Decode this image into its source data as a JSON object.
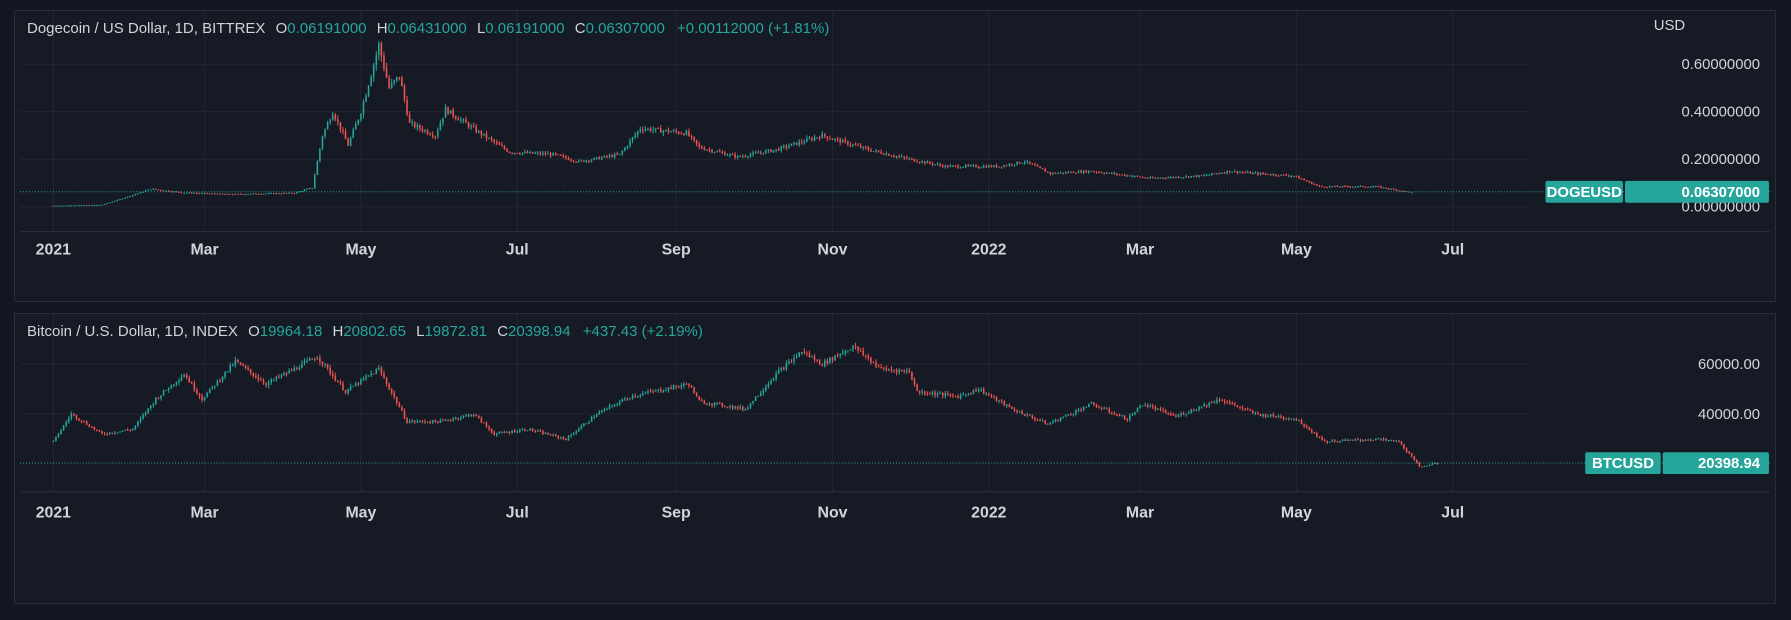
{
  "chart_data": [
    {
      "type": "candlestick",
      "title": "Dogecoin / US Dollar, 1D, BITTREX",
      "ohlc_labels": {
        "o": "O",
        "h": "H",
        "l": "L",
        "c": "C"
      },
      "ohlc": {
        "open": "0.06191000",
        "high": "0.06431000",
        "low": "0.06191000",
        "close": "0.06307000",
        "change": "+0.00112000 (+1.81%)"
      },
      "currency": "USD",
      "symbol": "DOGEUSD",
      "last_price": 0.06307,
      "last_price_label": "0.06307000",
      "ylim": [
        -0.012,
        0.74
      ],
      "y_ticks": [
        0,
        0.2,
        0.4,
        0.6
      ],
      "y_tick_labels": [
        "0.00000000",
        "0.20000000",
        "0.40000000",
        "0.60000000"
      ],
      "x_ticks": [
        "2021",
        "Mar",
        "May",
        "Jul",
        "Sep",
        "Nov",
        "2022",
        "Mar",
        "May",
        "Jul"
      ],
      "series": [
        {
          "date": "2021-01-01",
          "value": 0.0047
        },
        {
          "date": "2021-01-20",
          "value": 0.0085
        },
        {
          "date": "2021-01-28",
          "value": 0.035
        },
        {
          "date": "2021-02-08",
          "value": 0.075
        },
        {
          "date": "2021-02-20",
          "value": 0.06
        },
        {
          "date": "2021-03-10",
          "value": 0.053
        },
        {
          "date": "2021-04-05",
          "value": 0.058
        },
        {
          "date": "2021-04-12",
          "value": 0.08
        },
        {
          "date": "2021-04-16",
          "value": 0.3
        },
        {
          "date": "2021-04-20",
          "value": 0.4
        },
        {
          "date": "2021-04-26",
          "value": 0.26
        },
        {
          "date": "2021-05-01",
          "value": 0.4
        },
        {
          "date": "2021-05-08",
          "value": 0.68
        },
        {
          "date": "2021-05-12",
          "value": 0.5
        },
        {
          "date": "2021-05-16",
          "value": 0.55
        },
        {
          "date": "2021-05-20",
          "value": 0.35
        },
        {
          "date": "2021-05-30",
          "value": 0.3
        },
        {
          "date": "2021-06-03",
          "value": 0.41
        },
        {
          "date": "2021-06-15",
          "value": 0.32
        },
        {
          "date": "2021-06-28",
          "value": 0.23
        },
        {
          "date": "2021-07-15",
          "value": 0.22
        },
        {
          "date": "2021-07-25",
          "value": 0.19
        },
        {
          "date": "2021-08-10",
          "value": 0.22
        },
        {
          "date": "2021-08-18",
          "value": 0.33
        },
        {
          "date": "2021-09-05",
          "value": 0.31
        },
        {
          "date": "2021-09-10",
          "value": 0.25
        },
        {
          "date": "2021-09-25",
          "value": 0.21
        },
        {
          "date": "2021-10-10",
          "value": 0.24
        },
        {
          "date": "2021-10-28",
          "value": 0.3
        },
        {
          "date": "2021-11-15",
          "value": 0.24
        },
        {
          "date": "2021-12-01",
          "value": 0.2
        },
        {
          "date": "2021-12-15",
          "value": 0.17
        },
        {
          "date": "2022-01-05",
          "value": 0.17
        },
        {
          "date": "2022-01-15",
          "value": 0.19
        },
        {
          "date": "2022-01-25",
          "value": 0.14
        },
        {
          "date": "2022-02-10",
          "value": 0.15
        },
        {
          "date": "2022-03-05",
          "value": 0.12
        },
        {
          "date": "2022-03-25",
          "value": 0.13
        },
        {
          "date": "2022-04-05",
          "value": 0.15
        },
        {
          "date": "2022-04-15",
          "value": 0.14
        },
        {
          "date": "2022-04-30",
          "value": 0.13
        },
        {
          "date": "2022-05-10",
          "value": 0.085
        },
        {
          "date": "2022-06-01",
          "value": 0.085
        },
        {
          "date": "2022-06-15",
          "value": 0.06
        }
      ]
    },
    {
      "type": "candlestick",
      "title": "Bitcoin / U.S. Dollar, 1D, INDEX",
      "ohlc_labels": {
        "o": "O",
        "h": "H",
        "l": "L",
        "c": "C"
      },
      "ohlc": {
        "open": "19964.18",
        "high": "20802.65",
        "low": "19872.81",
        "close": "20398.94",
        "change": "+437.43 (+2.19%)"
      },
      "currency": "USD",
      "symbol": "BTCUSD",
      "last_price": 20398.94,
      "last_price_label": "20398.94",
      "ylim": [
        16500,
        72000
      ],
      "y_ticks": [
        40000,
        60000
      ],
      "y_tick_labels": [
        "40000.00",
        "60000.00"
      ],
      "x_ticks": [
        "2021",
        "Mar",
        "May",
        "Jul",
        "Sep",
        "Nov",
        "2022",
        "Mar",
        "May",
        "Jul"
      ],
      "series": [
        {
          "date": "2021-01-01",
          "value": 29000
        },
        {
          "date": "2021-01-08",
          "value": 40000
        },
        {
          "date": "2021-01-20",
          "value": 32000
        },
        {
          "date": "2021-02-01",
          "value": 34000
        },
        {
          "date": "2021-02-10",
          "value": 46000
        },
        {
          "date": "2021-02-21",
          "value": 56000
        },
        {
          "date": "2021-02-28",
          "value": 46000
        },
        {
          "date": "2021-03-13",
          "value": 61000
        },
        {
          "date": "2021-03-25",
          "value": 52000
        },
        {
          "date": "2021-04-14",
          "value": 63000
        },
        {
          "date": "2021-04-25",
          "value": 49000
        },
        {
          "date": "2021-05-08",
          "value": 58000
        },
        {
          "date": "2021-05-19",
          "value": 37000
        },
        {
          "date": "2021-06-01",
          "value": 37000
        },
        {
          "date": "2021-06-14",
          "value": 40000
        },
        {
          "date": "2021-06-22",
          "value": 32000
        },
        {
          "date": "2021-07-05",
          "value": 34000
        },
        {
          "date": "2021-07-20",
          "value": 30000
        },
        {
          "date": "2021-08-01",
          "value": 40000
        },
        {
          "date": "2021-08-14",
          "value": 47000
        },
        {
          "date": "2021-09-06",
          "value": 52000
        },
        {
          "date": "2021-09-10",
          "value": 45000
        },
        {
          "date": "2021-09-28",
          "value": 42000
        },
        {
          "date": "2021-10-10",
          "value": 56000
        },
        {
          "date": "2021-10-20",
          "value": 65000
        },
        {
          "date": "2021-10-28",
          "value": 60000
        },
        {
          "date": "2021-11-09",
          "value": 67000
        },
        {
          "date": "2021-11-20",
          "value": 58000
        },
        {
          "date": "2021-12-01",
          "value": 57000
        },
        {
          "date": "2021-12-04",
          "value": 49000
        },
        {
          "date": "2021-12-20",
          "value": 47000
        },
        {
          "date": "2021-12-28",
          "value": 50000
        },
        {
          "date": "2022-01-10",
          "value": 42000
        },
        {
          "date": "2022-01-24",
          "value": 36000
        },
        {
          "date": "2022-02-10",
          "value": 44000
        },
        {
          "date": "2022-02-24",
          "value": 38000
        },
        {
          "date": "2022-03-02",
          "value": 44000
        },
        {
          "date": "2022-03-15",
          "value": 39000
        },
        {
          "date": "2022-04-01",
          "value": 46000
        },
        {
          "date": "2022-04-15",
          "value": 40000
        },
        {
          "date": "2022-05-01",
          "value": 38000
        },
        {
          "date": "2022-05-12",
          "value": 29000
        },
        {
          "date": "2022-06-01",
          "value": 30000
        },
        {
          "date": "2022-06-10",
          "value": 29000
        },
        {
          "date": "2022-06-18",
          "value": 19000
        },
        {
          "date": "2022-06-25",
          "value": 20400
        }
      ]
    }
  ],
  "colors": {
    "up": "#26a69a",
    "down": "#ef5350",
    "background": "#161a25",
    "grid": "#232733",
    "text": "#d1d4dc"
  }
}
